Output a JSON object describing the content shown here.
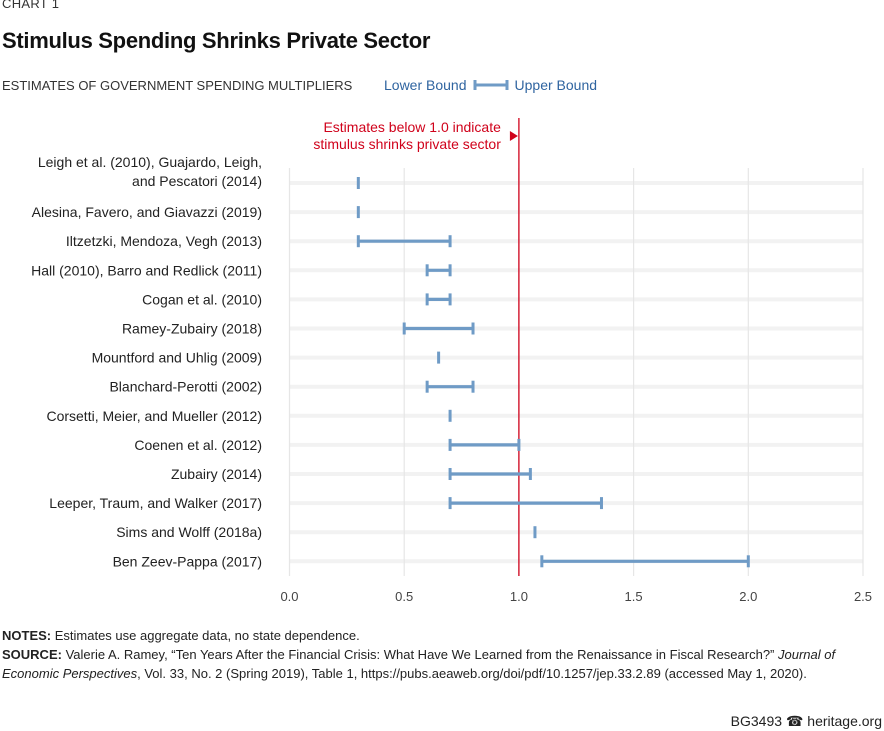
{
  "chart_label": "CHART 1",
  "footer": {
    "id": "BG3493",
    "site": "heritage.org",
    "icon": "liberty-bell-icon"
  },
  "notes": {
    "notes_label": "NOTES:",
    "notes_text": " Estimates use aggregate data, no state dependence.",
    "source_label": "SOURCE:",
    "source_text": " Valerie A. Ramey, “Ten Years After the Financial Crisis: What Have We Learned from the Renaissance in Fiscal Research?” ",
    "source_journal": "Journal of Economic Perspectives",
    "source_rest": ", Vol. 33, No. 2 (Spring 2019), Table 1, https://pubs.aeaweb.org/doi/pdf/10.1257/jep.33.2.89 (accessed May 1, 2020)."
  },
  "chart_data": {
    "type": "range",
    "title": "Stimulus Spending Shrinks Private Sector",
    "subtitle": "ESTIMATES OF GOVERNMENT SPENDING MULTIPLIERS",
    "legend": {
      "lower": "Lower Bound",
      "upper": "Upper Bound"
    },
    "xlim": [
      0,
      2.5
    ],
    "xticks": [
      "0.0",
      "0.5",
      "1.0",
      "1.5",
      "2.0",
      "2.5"
    ],
    "grid": true,
    "colors": {
      "range": "#6f9bc6",
      "reference": "#d0021b",
      "legend_text": "#2f64a0"
    },
    "reference_line": {
      "x": 1.0,
      "label": [
        "Estimates below 1.0 indicate",
        "stimulus shrinks private sector"
      ]
    },
    "rows": [
      {
        "label": [
          "Leigh et al. (2010), Guajardo, Leigh,",
          "and Pescatori (2014)"
        ],
        "low": 0.3,
        "high": 0.3
      },
      {
        "label": [
          "Alesina, Favero, and Giavazzi (2019)"
        ],
        "low": 0.3,
        "high": 0.3
      },
      {
        "label": [
          "Iltzetzki, Mendoza, Vegh (2013)"
        ],
        "low": 0.3,
        "high": 0.7
      },
      {
        "label": [
          "Hall (2010), Barro and Redlick (2011)"
        ],
        "low": 0.6,
        "high": 0.7
      },
      {
        "label": [
          "Cogan et al. (2010)"
        ],
        "low": 0.6,
        "high": 0.7
      },
      {
        "label": [
          "Ramey-Zubairy (2018)"
        ],
        "low": 0.5,
        "high": 0.8
      },
      {
        "label": [
          "Mountford and Uhlig (2009)"
        ],
        "low": 0.65,
        "high": 0.65
      },
      {
        "label": [
          "Blanchard-Perotti (2002)"
        ],
        "low": 0.6,
        "high": 0.8
      },
      {
        "label": [
          "Corsetti, Meier, and Mueller (2012)"
        ],
        "low": 0.7,
        "high": 0.7
      },
      {
        "label": [
          "Coenen et al. (2012)"
        ],
        "low": 0.7,
        "high": 1.0
      },
      {
        "label": [
          "Zubairy (2014)"
        ],
        "low": 0.7,
        "high": 1.05
      },
      {
        "label": [
          "Leeper, Traum, and Walker (2017)"
        ],
        "low": 0.7,
        "high": 1.36
      },
      {
        "label": [
          "Sims and Wolff (2018a)"
        ],
        "low": 1.07,
        "high": 1.07
      },
      {
        "label": [
          "Ben Zeev-Pappa (2017)"
        ],
        "low": 1.1,
        "high": 2.0
      }
    ]
  }
}
